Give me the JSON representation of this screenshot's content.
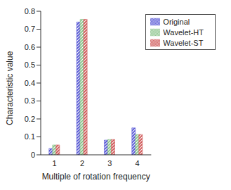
{
  "chart_data": {
    "type": "bar",
    "x_label": "Multiple of rotation frequency",
    "y_label": "Characteristic value",
    "categories": [
      "1",
      "2",
      "3",
      "4"
    ],
    "series": [
      {
        "name": "Original",
        "color": "#5b5bd6",
        "values": [
          0.035,
          0.74,
          0.082,
          0.15
        ]
      },
      {
        "name": "Wavelet-HT",
        "color": "#8cc48c",
        "values": [
          0.055,
          0.755,
          0.085,
          0.113
        ]
      },
      {
        "name": "Wavelet-ST",
        "color": "#d05a5a",
        "values": [
          0.055,
          0.755,
          0.085,
          0.113
        ]
      }
    ],
    "ylim": [
      0,
      0.8
    ],
    "yticks": [
      0,
      0.1,
      0.2,
      0.3,
      0.4,
      0.5,
      0.6,
      0.7,
      0.8
    ],
    "legend": "top-right",
    "grid": false
  }
}
